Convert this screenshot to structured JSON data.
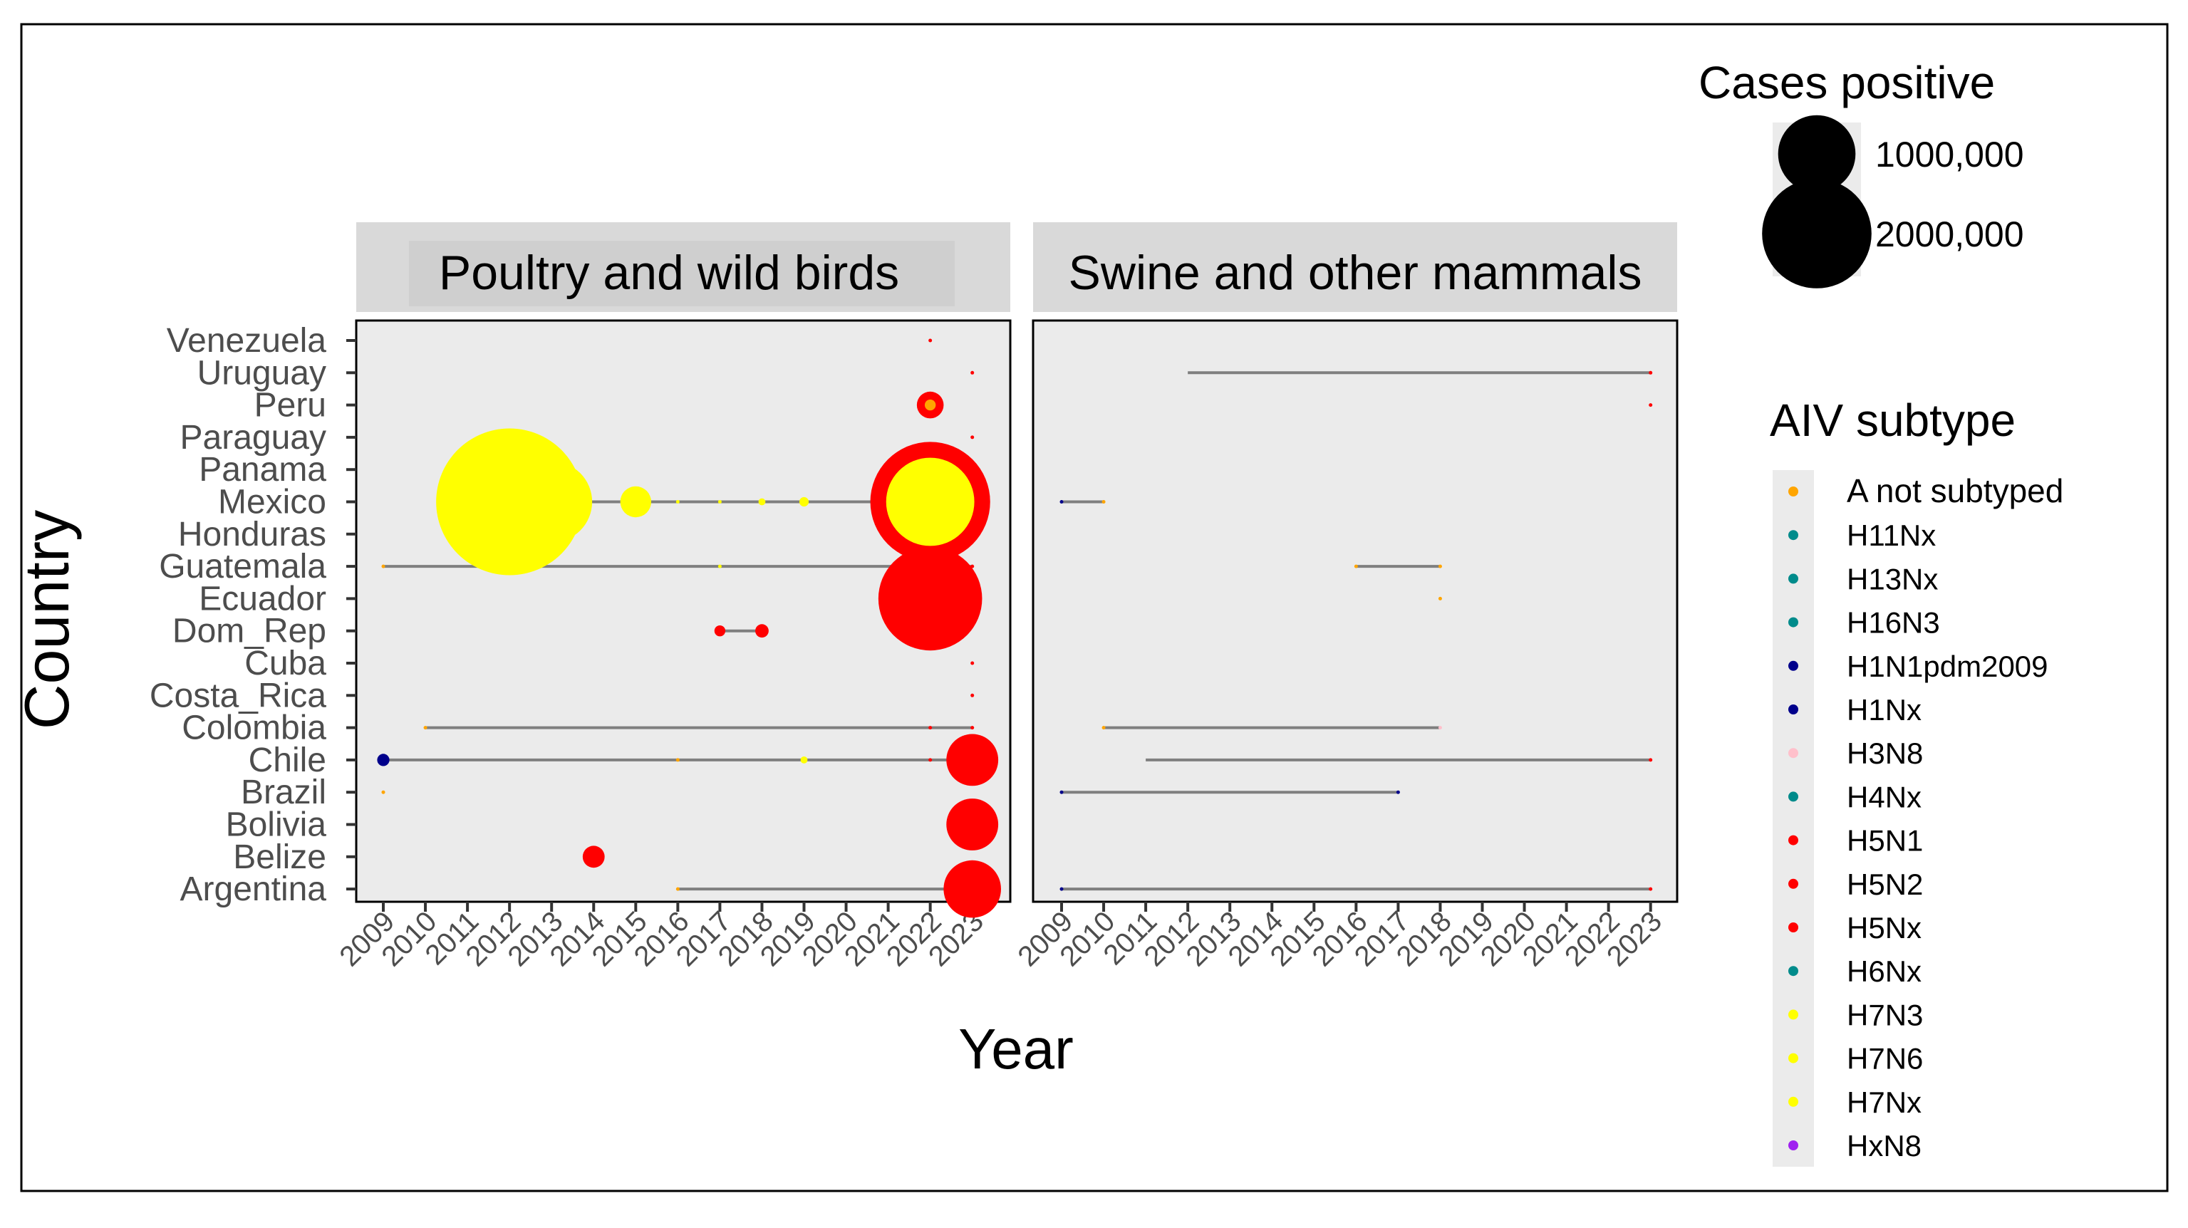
{
  "chart_data": {
    "type": "scatter",
    "subtype": "faceted bubble timeline",
    "xlabel": "Year",
    "ylabel": "Country",
    "years": [
      2009,
      2010,
      2011,
      2012,
      2013,
      2014,
      2015,
      2016,
      2017,
      2018,
      2019,
      2020,
      2021,
      2022,
      2023
    ],
    "countries": [
      "Venezuela",
      "Uruguay",
      "Peru",
      "Paraguay",
      "Panama",
      "Mexico",
      "Honduras",
      "Guatemala",
      "Ecuador",
      "Dom_Rep",
      "Cuba",
      "Costa_Rica",
      "Colombia",
      "Chile",
      "Brazil",
      "Bolivia",
      "Belize",
      "Argentina"
    ],
    "facets": [
      {
        "title": "Poultry and wild birds",
        "ranges": [
          {
            "country": "Mexico",
            "from": 2012,
            "to": 2022
          },
          {
            "country": "Guatemala",
            "from": 2009,
            "to": 2023
          },
          {
            "country": "Dom_Rep",
            "from": 2017,
            "to": 2018
          },
          {
            "country": "Colombia",
            "from": 2010,
            "to": 2023
          },
          {
            "country": "Chile",
            "from": 2009,
            "to": 2023
          },
          {
            "country": "Argentina",
            "from": 2016,
            "to": 2023
          }
        ],
        "points": [
          {
            "country": "Venezuela",
            "year": 2022,
            "subtype": "H5N1",
            "cases": 100
          },
          {
            "country": "Uruguay",
            "year": 2023,
            "subtype": "H5N1",
            "cases": 100
          },
          {
            "country": "Peru",
            "year": 2022,
            "subtype": "H5N1",
            "cases": 120000
          },
          {
            "country": "Peru",
            "year": 2022,
            "subtype": "A not subtyped",
            "cases": 20000
          },
          {
            "country": "Paraguay",
            "year": 2023,
            "subtype": "H5N1",
            "cases": 100
          },
          {
            "country": "Mexico",
            "year": 2012,
            "subtype": "H7N3",
            "cases": 3600000
          },
          {
            "country": "Mexico",
            "year": 2013,
            "subtype": "H7N3",
            "cases": 1100000
          },
          {
            "country": "Mexico",
            "year": 2015,
            "subtype": "H7N3",
            "cases": 160000
          },
          {
            "country": "Mexico",
            "year": 2016,
            "subtype": "H7N3",
            "cases": 500
          },
          {
            "country": "Mexico",
            "year": 2017,
            "subtype": "H7N3",
            "cases": 500
          },
          {
            "country": "Mexico",
            "year": 2018,
            "subtype": "H7N3",
            "cases": 8000
          },
          {
            "country": "Mexico",
            "year": 2019,
            "subtype": "H7N3",
            "cases": 15000
          },
          {
            "country": "Mexico",
            "year": 2022,
            "subtype": "H5N1",
            "cases": 2400000
          },
          {
            "country": "Mexico",
            "year": 2022,
            "subtype": "H7N3",
            "cases": 1300000
          },
          {
            "country": "Guatemala",
            "year": 2009,
            "subtype": "A not subtyped",
            "cases": 500
          },
          {
            "country": "Guatemala",
            "year": 2017,
            "subtype": "H7N3",
            "cases": 500
          },
          {
            "country": "Guatemala",
            "year": 2023,
            "subtype": "H5N1",
            "cases": 500
          },
          {
            "country": "Ecuador",
            "year": 2022,
            "subtype": "H5N1",
            "cases": 1800000
          },
          {
            "country": "Dom_Rep",
            "year": 2017,
            "subtype": "H5N2",
            "cases": 20000
          },
          {
            "country": "Dom_Rep",
            "year": 2018,
            "subtype": "H5N2",
            "cases": 30000
          },
          {
            "country": "Cuba",
            "year": 2023,
            "subtype": "H5N1",
            "cases": 100
          },
          {
            "country": "Costa_Rica",
            "year": 2023,
            "subtype": "H5N1",
            "cases": 100
          },
          {
            "country": "Colombia",
            "year": 2010,
            "subtype": "A not subtyped",
            "cases": 500
          },
          {
            "country": "Colombia",
            "year": 2022,
            "subtype": "H5N1",
            "cases": 1000
          },
          {
            "country": "Colombia",
            "year": 2023,
            "subtype": "H5N1",
            "cases": 500
          },
          {
            "country": "Chile",
            "year": 2009,
            "subtype": "H1N1pdm2009",
            "cases": 25000
          },
          {
            "country": "Chile",
            "year": 2016,
            "subtype": "A not subtyped",
            "cases": 2000
          },
          {
            "country": "Chile",
            "year": 2019,
            "subtype": "H7N6",
            "cases": 8000
          },
          {
            "country": "Chile",
            "year": 2022,
            "subtype": "H5N1",
            "cases": 2000
          },
          {
            "country": "Chile",
            "year": 2023,
            "subtype": "H5N1",
            "cases": 450000
          },
          {
            "country": "Brazil",
            "year": 2009,
            "subtype": "A not subtyped",
            "cases": 500
          },
          {
            "country": "Bolivia",
            "year": 2023,
            "subtype": "H5N1",
            "cases": 450000
          },
          {
            "country": "Belize",
            "year": 2014,
            "subtype": "H5N2",
            "cases": 80000
          },
          {
            "country": "Argentina",
            "year": 2016,
            "subtype": "A not subtyped",
            "cases": 500
          },
          {
            "country": "Argentina",
            "year": 2023,
            "subtype": "H5N1",
            "cases": 550000
          }
        ]
      },
      {
        "title": "Swine and other mammals",
        "ranges": [
          {
            "country": "Uruguay",
            "from": 2012,
            "to": 2023
          },
          {
            "country": "Mexico",
            "from": 2009,
            "to": 2010
          },
          {
            "country": "Guatemala",
            "from": 2016,
            "to": 2018
          },
          {
            "country": "Colombia",
            "from": 2010,
            "to": 2018
          },
          {
            "country": "Chile",
            "from": 2011,
            "to": 2023
          },
          {
            "country": "Brazil",
            "from": 2009,
            "to": 2017
          },
          {
            "country": "Argentina",
            "from": 2009,
            "to": 2023
          }
        ],
        "points": [
          {
            "country": "Uruguay",
            "year": 2023,
            "subtype": "H5N1",
            "cases": 50
          },
          {
            "country": "Peru",
            "year": 2023,
            "subtype": "H5N1",
            "cases": 50
          },
          {
            "country": "Mexico",
            "year": 2009,
            "subtype": "H1N1pdm2009",
            "cases": 500
          },
          {
            "country": "Mexico",
            "year": 2010,
            "subtype": "A not subtyped",
            "cases": 500
          },
          {
            "country": "Guatemala",
            "year": 2016,
            "subtype": "A not subtyped",
            "cases": 300
          },
          {
            "country": "Guatemala",
            "year": 2018,
            "subtype": "A not subtyped",
            "cases": 300
          },
          {
            "country": "Ecuador",
            "year": 2018,
            "subtype": "A not subtyped",
            "cases": 300
          },
          {
            "country": "Colombia",
            "year": 2010,
            "subtype": "A not subtyped",
            "cases": 300
          },
          {
            "country": "Colombia",
            "year": 2018,
            "subtype": "H3N8",
            "cases": 300
          },
          {
            "country": "Chile",
            "year": 2023,
            "subtype": "H5N1",
            "cases": 200
          },
          {
            "country": "Brazil",
            "year": 2009,
            "subtype": "H1N1pdm2009",
            "cases": 300
          },
          {
            "country": "Brazil",
            "year": 2017,
            "subtype": "H1Nx",
            "cases": 300
          },
          {
            "country": "Argentina",
            "year": 2009,
            "subtype": "H1N1pdm2009",
            "cases": 1500
          },
          {
            "country": "Argentina",
            "year": 2023,
            "subtype": "H5N1",
            "cases": 300
          }
        ]
      }
    ],
    "legend_size": {
      "title": "Cases positive",
      "items": [
        {
          "label": "1000,000",
          "value": 1000000
        },
        {
          "label": "2000,000",
          "value": 2000000
        }
      ]
    },
    "legend_color": {
      "title": "AIV subtype",
      "items": [
        {
          "label": "A not subtyped",
          "color": "#ffa500"
        },
        {
          "label": "H11Nx",
          "color": "#008b8b"
        },
        {
          "label": "H13Nx",
          "color": "#008b8b"
        },
        {
          "label": "H16N3",
          "color": "#008b8b"
        },
        {
          "label": "H1N1pdm2009",
          "color": "#00008b"
        },
        {
          "label": "H1Nx",
          "color": "#00008b"
        },
        {
          "label": "H3N8",
          "color": "#ffc0cb"
        },
        {
          "label": "H4Nx",
          "color": "#008b8b"
        },
        {
          "label": "H5N1",
          "color": "#ff0000"
        },
        {
          "label": "H5N2",
          "color": "#ff0000"
        },
        {
          "label": "H5Nx",
          "color": "#ff0000"
        },
        {
          "label": "H6Nx",
          "color": "#008b8b"
        },
        {
          "label": "H7N3",
          "color": "#ffff00"
        },
        {
          "label": "H7N6",
          "color": "#ffff00"
        },
        {
          "label": "H7Nx",
          "color": "#ffff00"
        },
        {
          "label": "HxN8",
          "color": "#a020f0"
        }
      ]
    }
  }
}
